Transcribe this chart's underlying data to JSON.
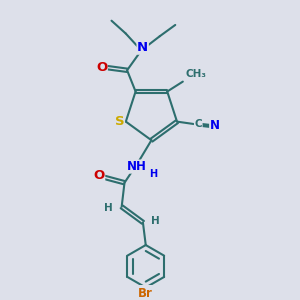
{
  "bg_color": "#dde0ea",
  "bond_color": "#2d6e6e",
  "bond_width": 1.5,
  "dbo": 0.06,
  "atom_colors": {
    "S": "#ccaa00",
    "N": "#0000ee",
    "O": "#cc0000",
    "Br": "#cc6600",
    "C": "#2d6e6e",
    "H": "#2d6e6e"
  },
  "fs": 8.5
}
